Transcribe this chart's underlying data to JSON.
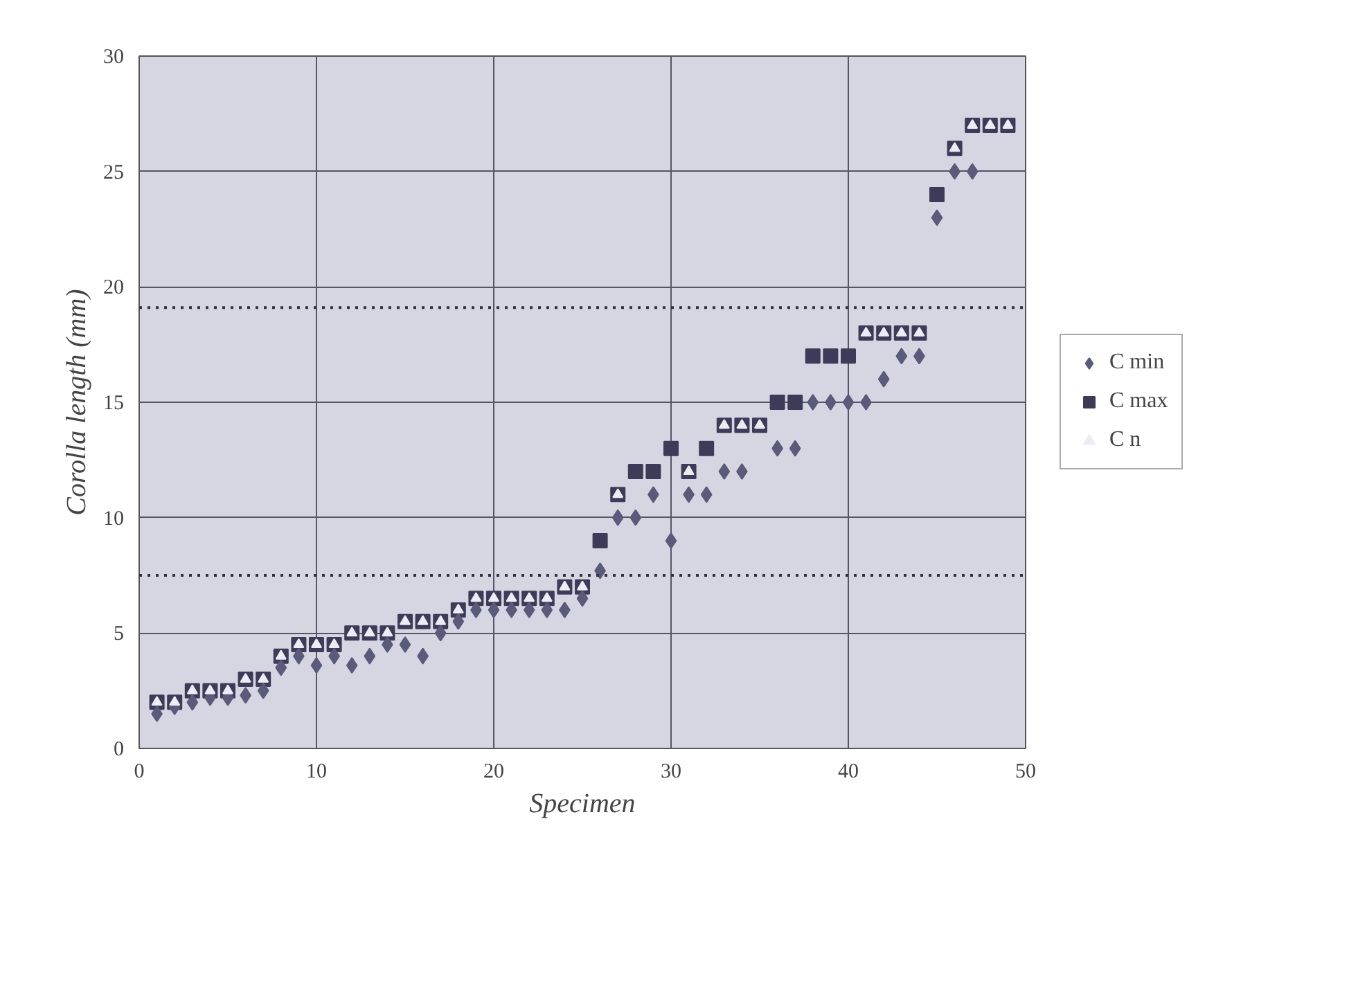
{
  "chart_data": {
    "type": "scatter",
    "xlabel": "Specimen",
    "ylabel": "Corolla length (mm)",
    "x": [
      1,
      2,
      3,
      4,
      5,
      6,
      7,
      8,
      9,
      10,
      11,
      12,
      13,
      14,
      15,
      16,
      17,
      18,
      19,
      20,
      21,
      22,
      23,
      24,
      25,
      26,
      27,
      28,
      29,
      30,
      31,
      32,
      33,
      34,
      35,
      36,
      37,
      38,
      39,
      40,
      41,
      42,
      43,
      44,
      45,
      46,
      47,
      48,
      49
    ],
    "series": [
      {
        "name": "C min",
        "color": "#5a5a7a",
        "marker": "diamond",
        "values": [
          1.5,
          1.8,
          2,
          2.2,
          2.2,
          2.3,
          2.5,
          3.5,
          4,
          3.6,
          4,
          3.6,
          4,
          4.5,
          4.5,
          4,
          5,
          5.5,
          6,
          6,
          6,
          6,
          6,
          6,
          6.5,
          7.7,
          10,
          10,
          11,
          9,
          11,
          11,
          12,
          12,
          null,
          13,
          13,
          15,
          15,
          15,
          15,
          16,
          17,
          17,
          23,
          25,
          25,
          null,
          null
        ]
      },
      {
        "name": "C max",
        "color": "#3c3c58",
        "marker": "square",
        "values": [
          2,
          2,
          2.5,
          2.5,
          2.5,
          3,
          3,
          4,
          4.5,
          4.5,
          4.5,
          5,
          5,
          5,
          5.5,
          5.5,
          5.5,
          6,
          6.5,
          6.5,
          6.5,
          6.5,
          6.5,
          7,
          7,
          9,
          11,
          12,
          12,
          13,
          12,
          13,
          14,
          14,
          14,
          15,
          15,
          17,
          17,
          17,
          18,
          18,
          18,
          18,
          24,
          26,
          27,
          27,
          27
        ]
      },
      {
        "name": "C n",
        "color": "#ececf4",
        "marker": "triangle",
        "values": [
          2,
          2,
          2.5,
          2.5,
          2.5,
          3,
          3,
          4,
          4.5,
          4.5,
          4.5,
          5,
          5,
          5,
          5.5,
          5.5,
          5.5,
          6,
          6.5,
          6.5,
          6.5,
          6.5,
          6.5,
          7,
          7,
          null,
          11,
          null,
          null,
          null,
          12,
          null,
          14,
          14,
          14,
          null,
          null,
          null,
          null,
          null,
          18,
          18,
          18,
          18,
          null,
          26,
          27,
          27,
          27
        ]
      }
    ],
    "xlim": [
      0,
      50
    ],
    "ylim": [
      0,
      30
    ],
    "xticks": [
      0,
      10,
      20,
      30,
      40,
      50
    ],
    "yticks": [
      0,
      5,
      10,
      15,
      20,
      25,
      30
    ],
    "ref_lines": [
      {
        "axis": "y",
        "value": 19.1,
        "color": "#303040",
        "line_style": "dotted"
      },
      {
        "axis": "y",
        "value": 7.5,
        "color": "#303040",
        "line_style": "dotted"
      }
    ],
    "grid": true,
    "legend": "right"
  }
}
